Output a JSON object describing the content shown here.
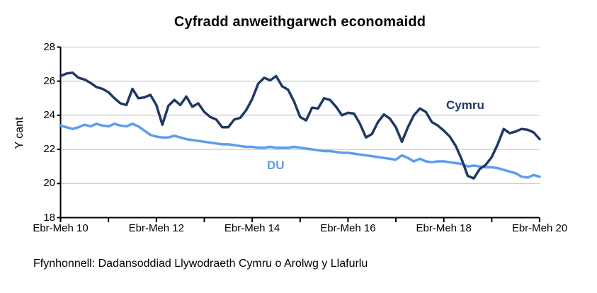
{
  "source": "Ffynhonnell: Dadansoddiad Llywodraeth Cymru o Arolwg y Llafurlu",
  "colors": {
    "cymru_line": "#1F3864",
    "du_line": "#5E9CEC",
    "gridline": "#BFBFBF",
    "axis": "#000000",
    "background": "#FFFFFF",
    "title_text": "#000000"
  },
  "chart_data": {
    "type": "line",
    "title": "Cyfradd anweithgarwch economaidd",
    "xlabel": "",
    "ylabel": "Y cant",
    "ylim": [
      18,
      28
    ],
    "yticks": [
      18,
      20,
      22,
      24,
      26,
      28
    ],
    "grid": true,
    "legend_position": "inline-labels-on-plot",
    "x_tick_labels": [
      "Ebr-Meh 10",
      "Ebr-Meh 12",
      "Ebr-Meh 14",
      "Ebr-Meh 16",
      "Ebr-Meh 18",
      "Ebr-Meh 20"
    ],
    "x_minor_ticks_years": [
      "10",
      "11",
      "12",
      "13",
      "14",
      "15",
      "16",
      "17",
      "18",
      "19",
      "20"
    ],
    "x_note": "rolling quarterly series sampled ~every 6 weeks from Ebr-Meh 2010 to Ebr-Meh 2020; 81 points per series",
    "series": [
      {
        "name": "Cymru",
        "color": "#1F3864",
        "values": [
          26.3,
          26.45,
          26.5,
          26.2,
          26.1,
          25.9,
          25.65,
          25.55,
          25.35,
          25.0,
          24.7,
          24.6,
          25.55,
          25.0,
          25.05,
          25.2,
          24.6,
          23.45,
          24.55,
          24.9,
          24.6,
          25.1,
          24.5,
          24.7,
          24.2,
          23.9,
          23.75,
          23.3,
          23.3,
          23.75,
          23.85,
          24.3,
          24.95,
          25.85,
          26.2,
          26.05,
          26.3,
          25.7,
          25.5,
          24.8,
          23.9,
          23.7,
          24.45,
          24.4,
          25.0,
          24.9,
          24.5,
          24.0,
          24.15,
          24.1,
          23.5,
          22.7,
          22.9,
          23.6,
          24.05,
          23.8,
          23.3,
          22.45,
          23.3,
          24.0,
          24.4,
          24.2,
          23.6,
          23.4,
          23.1,
          22.75,
          22.2,
          21.4,
          20.45,
          20.3,
          20.85,
          21.1,
          21.55,
          22.3,
          23.2,
          22.95,
          23.05,
          23.2,
          23.15,
          23.0,
          22.6
        ]
      },
      {
        "name": "DU",
        "color": "#5E9CEC",
        "values": [
          23.4,
          23.3,
          23.2,
          23.3,
          23.45,
          23.35,
          23.5,
          23.4,
          23.35,
          23.5,
          23.4,
          23.35,
          23.5,
          23.35,
          23.1,
          22.85,
          22.75,
          22.7,
          22.7,
          22.8,
          22.7,
          22.6,
          22.55,
          22.5,
          22.45,
          22.4,
          22.35,
          22.3,
          22.3,
          22.25,
          22.2,
          22.15,
          22.15,
          22.1,
          22.1,
          22.15,
          22.1,
          22.1,
          22.1,
          22.15,
          22.1,
          22.05,
          22.0,
          21.95,
          21.9,
          21.9,
          21.85,
          21.8,
          21.8,
          21.75,
          21.7,
          21.65,
          21.6,
          21.55,
          21.5,
          21.45,
          21.4,
          21.65,
          21.5,
          21.3,
          21.45,
          21.3,
          21.25,
          21.3,
          21.3,
          21.25,
          21.2,
          21.15,
          21.0,
          21.05,
          21.0,
          20.95,
          20.95,
          20.9,
          20.8,
          20.7,
          20.6,
          20.4,
          20.35,
          20.5,
          20.4
        ]
      }
    ]
  }
}
